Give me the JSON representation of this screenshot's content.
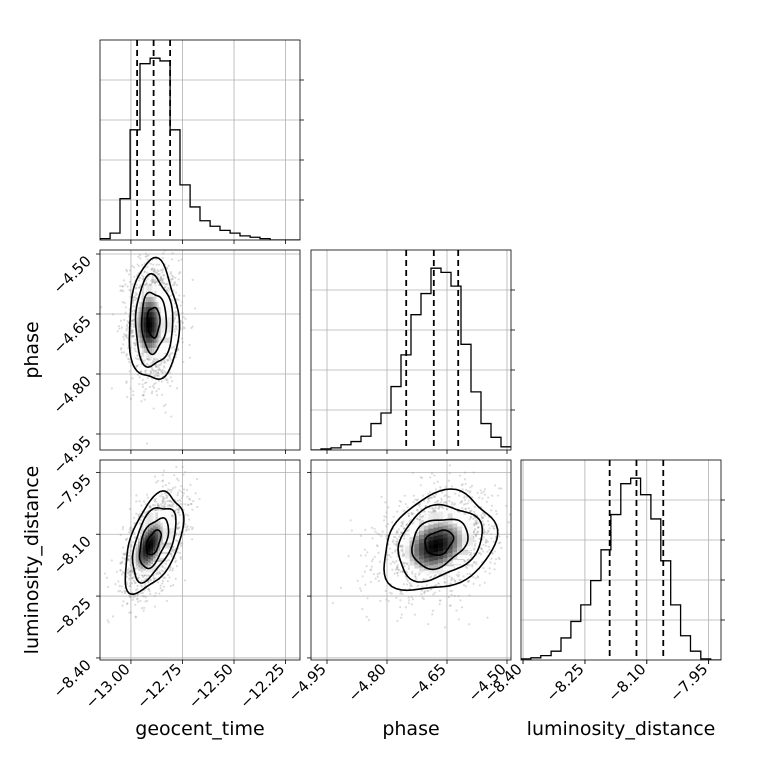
{
  "chart_data": {
    "type": "corner",
    "parameters": [
      {
        "name": "geocent_time",
        "label": "geocent_time",
        "range": [
          -13.15,
          -12.18
        ],
        "ticks": [
          -13.0,
          -12.75,
          -12.5,
          -12.25
        ],
        "tick_labels": [
          "−13.00",
          "−12.75",
          "−12.50",
          "−12.25"
        ]
      },
      {
        "name": "phase",
        "label": "phase",
        "range": [
          -4.99,
          -4.49
        ],
        "ticks": [
          -4.95,
          -4.8,
          -4.65,
          -4.5
        ],
        "tick_labels": [
          "−4.95",
          "−4.80",
          "−4.65",
          "−4.50"
        ]
      },
      {
        "name": "luminosity_distance",
        "label": "luminosity_distance",
        "range": [
          -8.405,
          -7.92
        ],
        "ticks": [
          -8.4,
          -8.25,
          -8.1,
          -7.95
        ],
        "tick_labels": [
          "−8.40",
          "−8.25",
          "−8.10",
          "−7.95"
        ]
      }
    ],
    "histograms": [
      {
        "parameter": "geocent_time",
        "bin_edges": [
          -13.15,
          -13.101,
          -13.053,
          -13.004,
          -12.956,
          -12.907,
          -12.859,
          -12.81,
          -12.762,
          -12.713,
          -12.665,
          -12.616,
          -12.568,
          -12.519,
          -12.471,
          -12.422,
          -12.374,
          -12.325,
          -12.277,
          -12.228,
          -12.18
        ],
        "counts": [
          1,
          5,
          30,
          80,
          128,
          132,
          130,
          80,
          40,
          24,
          14,
          10,
          7,
          5,
          3,
          2,
          1,
          0,
          0,
          0
        ],
        "quantiles": [
          -12.97,
          -12.89,
          -12.81
        ]
      },
      {
        "parameter": "phase",
        "bin_edges": [
          -4.99,
          -4.965,
          -4.94,
          -4.915,
          -4.89,
          -4.865,
          -4.84,
          -4.815,
          -4.79,
          -4.765,
          -4.74,
          -4.715,
          -4.69,
          -4.665,
          -4.64,
          -4.615,
          -4.59,
          -4.565,
          -4.54,
          -4.515,
          -4.49
        ],
        "counts": [
          0,
          1,
          2,
          5,
          8,
          13,
          25,
          35,
          60,
          90,
          128,
          148,
          172,
          168,
          155,
          100,
          55,
          25,
          12,
          3
        ],
        "quantiles": [
          -4.752,
          -4.683,
          -4.622
        ]
      },
      {
        "parameter": "luminosity_distance",
        "bin_edges": [
          -8.405,
          -8.381,
          -8.357,
          -8.332,
          -8.308,
          -8.284,
          -8.26,
          -8.236,
          -8.211,
          -8.187,
          -8.163,
          -8.139,
          -8.115,
          -8.09,
          -8.066,
          -8.042,
          -8.018,
          -7.994,
          -7.969,
          -7.945,
          -7.92
        ],
        "counts": [
          1,
          2,
          4,
          8,
          20,
          35,
          50,
          72,
          100,
          132,
          160,
          165,
          150,
          128,
          90,
          50,
          22,
          8,
          1,
          0
        ],
        "quantiles": [
          -8.19,
          -8.125,
          -8.06
        ]
      }
    ],
    "pairs": [
      {
        "x": "geocent_time",
        "y": "phase",
        "center": [
          -12.89,
          -4.67
        ],
        "sigma": [
          0.06,
          0.075
        ],
        "correlation": 0.0
      },
      {
        "x": "geocent_time",
        "y": "luminosity_distance",
        "center": [
          -12.89,
          -8.12
        ],
        "sigma": [
          0.07,
          0.06
        ],
        "correlation": 0.5
      },
      {
        "x": "phase",
        "y": "luminosity_distance",
        "center": [
          -4.67,
          -8.12
        ],
        "sigma": [
          0.07,
          0.06
        ],
        "correlation": 0.25
      }
    ],
    "contour_levels": [
      "0.5-sigma",
      "1-sigma",
      "1.5-sigma",
      "2-sigma"
    ],
    "grid": true,
    "colors": {
      "line": "#000000",
      "grid": "#b0b0b0",
      "points": "#9a9a9a"
    }
  }
}
